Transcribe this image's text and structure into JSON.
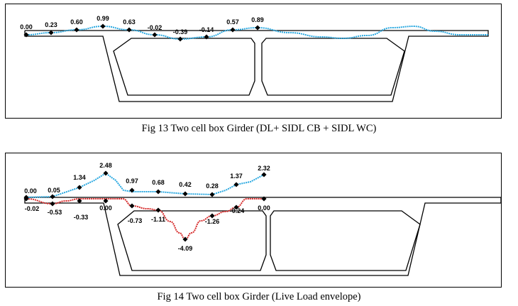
{
  "figures": [
    {
      "caption": "Fig 13 Two cell box Girder (DL+ SIDL CB + SIDL WC)",
      "top_labels": [
        "0.00",
        "0.23",
        "0.60",
        "0.99",
        "0.63",
        "-0.02",
        "-0.39",
        "-0.14",
        "0.57",
        "0.89"
      ],
      "bottom_labels": []
    },
    {
      "caption": "Fig 14 Two cell box Girder (Live Load envelope)",
      "top_labels": [
        "0.00",
        "0.05",
        "1.34",
        "2.48",
        "0.97",
        "0.68",
        "0.42",
        "0.28",
        "1.37",
        "2.32"
      ],
      "bottom_labels": [
        "-0.02",
        "-0.53",
        "-0.33",
        "0.00",
        "-0.73",
        "-1.11",
        "-4.09",
        "-1.26",
        "-0.24",
        "0.00"
      ]
    }
  ],
  "colors": {
    "max_line": "#29a8e0",
    "min_line": "#d62c2c",
    "marker": "#000000",
    "structure": "#000000"
  }
}
